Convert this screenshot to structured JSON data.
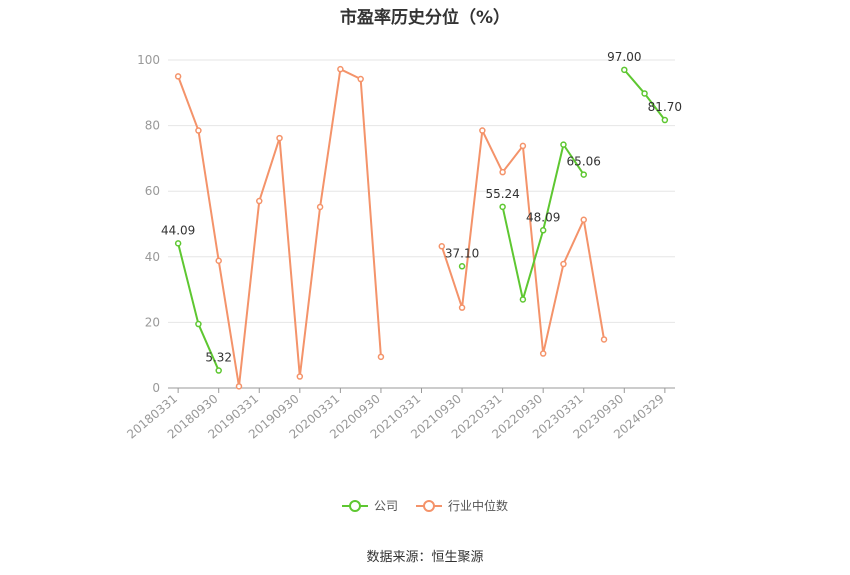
{
  "chart_data": {
    "type": "line",
    "title": "市盈率历史分位（%）",
    "xlabel": "",
    "ylabel": "",
    "ylim": [
      0,
      100
    ],
    "yticks": [
      0,
      20,
      40,
      60,
      80,
      100
    ],
    "x": [
      "20180331",
      "20180630",
      "20180930",
      "20181231",
      "20190331",
      "20190630",
      "20190930",
      "20191231",
      "20200331",
      "20200630",
      "20200930",
      "20201231",
      "20210331",
      "20210630",
      "20210930",
      "20211231",
      "20220331",
      "20220630",
      "20220930",
      "20221231",
      "20230331",
      "20230630",
      "20230930",
      "20231231",
      "20240329"
    ],
    "xtick_labels": [
      "20180331",
      "20180930",
      "20190331",
      "20190930",
      "20200331",
      "20200930",
      "20210331",
      "20210930",
      "20220331",
      "20220930",
      "20230331",
      "20230930",
      "20240329"
    ],
    "grid": true,
    "legend_position": "bottom",
    "series": [
      {
        "name": "公司",
        "color": "#5ec731",
        "values": [
          44.09,
          19.5,
          5.32,
          null,
          null,
          null,
          null,
          null,
          null,
          null,
          null,
          null,
          null,
          null,
          37.1,
          null,
          55.24,
          27.0,
          48.09,
          74.2,
          65.06,
          null,
          97.0,
          89.8,
          81.7
        ],
        "labels": [
          "44.09",
          null,
          "5.32",
          null,
          null,
          null,
          null,
          null,
          null,
          null,
          null,
          null,
          null,
          null,
          "37.10",
          null,
          "55.24",
          null,
          "48.09",
          null,
          "65.06",
          null,
          "97.00",
          null,
          "81.70"
        ]
      },
      {
        "name": "行业中位数",
        "color": "#f4936a",
        "values": [
          95.0,
          78.5,
          38.8,
          0.5,
          57.0,
          76.2,
          3.5,
          55.2,
          97.2,
          94.2,
          9.5,
          null,
          null,
          43.2,
          24.5,
          78.5,
          65.8,
          73.8,
          10.5,
          37.8,
          51.3,
          14.8,
          null,
          null,
          null
        ],
        "labels": []
      }
    ]
  },
  "footer": {
    "source": "数据来源：恒生聚源"
  }
}
